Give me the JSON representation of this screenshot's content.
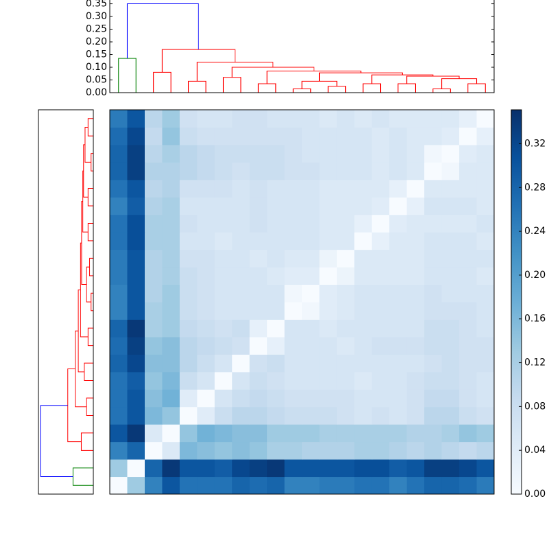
{
  "chart_data": {
    "type": "clustered-heatmap",
    "cmap": "Blues",
    "matrix": [
      [
        0,
        0.13,
        0.24,
        0.3,
        0.26,
        0.26,
        0.26,
        0.28,
        0.27,
        0.28,
        0.24,
        0.24,
        0.25,
        0.25,
        0.26,
        0.26,
        0.24,
        0.26,
        0.28,
        0.28,
        0.27,
        0.25
      ],
      [
        0.13,
        0,
        0.28,
        0.34,
        0.3,
        0.3,
        0.29,
        0.32,
        0.33,
        0.34,
        0.3,
        0.3,
        0.3,
        0.3,
        0.31,
        0.31,
        0.29,
        0.3,
        0.33,
        0.33,
        0.32,
        0.3
      ],
      [
        0.24,
        0.28,
        0,
        0.05,
        0.16,
        0.15,
        0.14,
        0.15,
        0.14,
        0.12,
        0.12,
        0.11,
        0.11,
        0.11,
        0.12,
        0.12,
        0.11,
        0.1,
        0.11,
        0.1,
        0.09,
        0.1
      ],
      [
        0.3,
        0.34,
        0.05,
        0,
        0.14,
        0.17,
        0.16,
        0.15,
        0.15,
        0.13,
        0.13,
        0.13,
        0.12,
        0.12,
        0.12,
        0.12,
        0.12,
        0.11,
        0.11,
        0.12,
        0.14,
        0.13
      ],
      [
        0.26,
        0.3,
        0.16,
        0.14,
        0,
        0.04,
        0.08,
        0.1,
        0.1,
        0.09,
        0.08,
        0.08,
        0.08,
        0.07,
        0.06,
        0.07,
        0.06,
        0.07,
        0.1,
        0.1,
        0.08,
        0.07
      ],
      [
        0.26,
        0.3,
        0.15,
        0.17,
        0.04,
        0,
        0.06,
        0.08,
        0.09,
        0.08,
        0.07,
        0.07,
        0.07,
        0.07,
        0.06,
        0.06,
        0.06,
        0.07,
        0.09,
        0.09,
        0.07,
        0.06
      ],
      [
        0.26,
        0.29,
        0.14,
        0.16,
        0.08,
        0.06,
        0,
        0.06,
        0.08,
        0.07,
        0.06,
        0.06,
        0.06,
        0.06,
        0.05,
        0.06,
        0.06,
        0.07,
        0.08,
        0.08,
        0.07,
        0.06
      ],
      [
        0.28,
        0.32,
        0.15,
        0.15,
        0.1,
        0.08,
        0.06,
        0,
        0.07,
        0.08,
        0.06,
        0.06,
        0.06,
        0.06,
        0.06,
        0.06,
        0.06,
        0.06,
        0.07,
        0.08,
        0.07,
        0.07
      ],
      [
        0.27,
        0.33,
        0.14,
        0.15,
        0.1,
        0.09,
        0.08,
        0.07,
        0,
        0.03,
        0.06,
        0.06,
        0.06,
        0.05,
        0.06,
        0.07,
        0.07,
        0.07,
        0.08,
        0.08,
        0.07,
        0.07
      ],
      [
        0.28,
        0.34,
        0.12,
        0.13,
        0.09,
        0.08,
        0.07,
        0.08,
        0.03,
        0,
        0.06,
        0.06,
        0.05,
        0.06,
        0.06,
        0.06,
        0.06,
        0.06,
        0.08,
        0.08,
        0.07,
        0.06
      ],
      [
        0.24,
        0.3,
        0.12,
        0.13,
        0.08,
        0.07,
        0.06,
        0.06,
        0.06,
        0.06,
        0,
        0.01,
        0.04,
        0.05,
        0.06,
        0.06,
        0.06,
        0.06,
        0.07,
        0.07,
        0.07,
        0.06
      ],
      [
        0.24,
        0.3,
        0.11,
        0.13,
        0.08,
        0.07,
        0.06,
        0.06,
        0.06,
        0.06,
        0.01,
        0,
        0.04,
        0.05,
        0.06,
        0.06,
        0.06,
        0.06,
        0.07,
        0.06,
        0.06,
        0.06
      ],
      [
        0.25,
        0.3,
        0.11,
        0.12,
        0.08,
        0.07,
        0.06,
        0.06,
        0.06,
        0.05,
        0.04,
        0.04,
        0,
        0.02,
        0.05,
        0.05,
        0.05,
        0.05,
        0.06,
        0.06,
        0.06,
        0.05
      ],
      [
        0.25,
        0.3,
        0.11,
        0.12,
        0.07,
        0.07,
        0.06,
        0.06,
        0.05,
        0.06,
        0.05,
        0.05,
        0.02,
        0,
        0.05,
        0.05,
        0.05,
        0.05,
        0.06,
        0.06,
        0.06,
        0.06
      ],
      [
        0.26,
        0.31,
        0.12,
        0.12,
        0.06,
        0.06,
        0.05,
        0.06,
        0.06,
        0.06,
        0.06,
        0.06,
        0.05,
        0.05,
        0,
        0.03,
        0.05,
        0.05,
        0.06,
        0.06,
        0.06,
        0.05
      ],
      [
        0.26,
        0.31,
        0.12,
        0.12,
        0.07,
        0.06,
        0.06,
        0.06,
        0.07,
        0.06,
        0.06,
        0.06,
        0.05,
        0.05,
        0.03,
        0,
        0.04,
        0.05,
        0.05,
        0.05,
        0.05,
        0.06
      ],
      [
        0.24,
        0.29,
        0.11,
        0.12,
        0.06,
        0.06,
        0.06,
        0.06,
        0.07,
        0.06,
        0.06,
        0.06,
        0.05,
        0.05,
        0.05,
        0.04,
        0,
        0.03,
        0.06,
        0.06,
        0.06,
        0.05
      ],
      [
        0.26,
        0.3,
        0.1,
        0.11,
        0.07,
        0.07,
        0.07,
        0.06,
        0.07,
        0.06,
        0.06,
        0.06,
        0.05,
        0.05,
        0.05,
        0.05,
        0.03,
        0,
        0.05,
        0.05,
        0.05,
        0.05
      ],
      [
        0.28,
        0.33,
        0.11,
        0.11,
        0.1,
        0.09,
        0.08,
        0.07,
        0.08,
        0.08,
        0.07,
        0.07,
        0.06,
        0.06,
        0.06,
        0.05,
        0.06,
        0.05,
        0,
        0.01,
        0.05,
        0.05
      ],
      [
        0.28,
        0.33,
        0.1,
        0.12,
        0.1,
        0.09,
        0.08,
        0.08,
        0.08,
        0.08,
        0.07,
        0.06,
        0.06,
        0.06,
        0.06,
        0.05,
        0.06,
        0.05,
        0.01,
        0,
        0.04,
        0.05
      ],
      [
        0.27,
        0.32,
        0.09,
        0.14,
        0.08,
        0.07,
        0.07,
        0.07,
        0.07,
        0.07,
        0.07,
        0.06,
        0.06,
        0.06,
        0.06,
        0.05,
        0.06,
        0.05,
        0.05,
        0.04,
        0,
        0.03
      ],
      [
        0.25,
        0.3,
        0.1,
        0.13,
        0.07,
        0.06,
        0.06,
        0.07,
        0.07,
        0.06,
        0.06,
        0.06,
        0.05,
        0.06,
        0.05,
        0.06,
        0.05,
        0.05,
        0.05,
        0.05,
        0.03,
        0
      ]
    ],
    "clim": [
      0,
      0.351
    ],
    "colorbar_ticks": [
      {
        "value": 0,
        "label": "0.00"
      },
      {
        "value": 0.04,
        "label": "0.04"
      },
      {
        "value": 0.08,
        "label": "0.08"
      },
      {
        "value": 0.12,
        "label": "0.12"
      },
      {
        "value": 0.16,
        "label": "0.16"
      },
      {
        "value": 0.2,
        "label": "0.20"
      },
      {
        "value": 0.24,
        "label": "0.24"
      },
      {
        "value": 0.28,
        "label": "0.28"
      },
      {
        "value": 0.32,
        "label": "0.32"
      }
    ],
    "dendrogram": {
      "ylim": [
        0,
        0.365
      ],
      "yticks": [
        {
          "value": 0,
          "label": "0.00"
        },
        {
          "value": 0.05,
          "label": "0.05"
        },
        {
          "value": 0.1,
          "label": "0.10"
        },
        {
          "value": 0.15,
          "label": "0.15"
        },
        {
          "value": 0.2,
          "label": "0.20"
        },
        {
          "value": 0.25,
          "label": "0.25"
        },
        {
          "value": 0.3,
          "label": "0.30"
        },
        {
          "value": 0.35,
          "label": "0.35"
        }
      ],
      "links": [
        {
          "left": 0.5,
          "right": 1.5,
          "left_base": 0,
          "right_base": 0,
          "height": 0.135,
          "color": "#008000"
        },
        {
          "left": 2.5,
          "right": 3.5,
          "left_base": 0,
          "right_base": 0,
          "height": 0.08,
          "color": "#ff0000"
        },
        {
          "left": 4.5,
          "right": 5.5,
          "left_base": 0,
          "right_base": 0,
          "height": 0.045,
          "color": "#ff0000"
        },
        {
          "left": 6.5,
          "right": 7.5,
          "left_base": 0,
          "right_base": 0,
          "height": 0.06,
          "color": "#ff0000"
        },
        {
          "left": 8.5,
          "right": 9.5,
          "left_base": 0,
          "right_base": 0,
          "height": 0.035,
          "color": "#ff0000"
        },
        {
          "left": 10.5,
          "right": 11.5,
          "left_base": 0,
          "right_base": 0,
          "height": 0.015,
          "color": "#ff0000"
        },
        {
          "left": 12.5,
          "right": 13.5,
          "left_base": 0,
          "right_base": 0,
          "height": 0.025,
          "color": "#ff0000"
        },
        {
          "left": 11,
          "right": 13,
          "left_base": 0.015,
          "right_base": 0.025,
          "height": 0.045,
          "color": "#ff0000"
        },
        {
          "left": 14.5,
          "right": 15.5,
          "left_base": 0,
          "right_base": 0,
          "height": 0.035,
          "color": "#ff0000"
        },
        {
          "left": 16.5,
          "right": 17.5,
          "left_base": 0,
          "right_base": 0,
          "height": 0.035,
          "color": "#ff0000"
        },
        {
          "left": 18.5,
          "right": 19.5,
          "left_base": 0,
          "right_base": 0,
          "height": 0.015,
          "color": "#ff0000"
        },
        {
          "left": 20.5,
          "right": 21.5,
          "left_base": 0,
          "right_base": 0,
          "height": 0.035,
          "color": "#ff0000"
        },
        {
          "left": 19,
          "right": 21,
          "left_base": 0.015,
          "right_base": 0.035,
          "height": 0.055,
          "color": "#ff0000"
        },
        {
          "left": 17,
          "right": 20,
          "left_base": 0.035,
          "right_base": 0.055,
          "height": 0.065,
          "color": "#ff0000"
        },
        {
          "left": 15,
          "right": 18.5,
          "left_base": 0.035,
          "right_base": 0.065,
          "height": 0.07,
          "color": "#ff0000"
        },
        {
          "left": 12,
          "right": 16.75,
          "left_base": 0.045,
          "right_base": 0.07,
          "height": 0.078,
          "color": "#ff0000"
        },
        {
          "left": 9,
          "right": 14.375,
          "left_base": 0.035,
          "right_base": 0.078,
          "height": 0.085,
          "color": "#ff0000"
        },
        {
          "left": 7,
          "right": 11.69,
          "left_base": 0.06,
          "right_base": 0.085,
          "height": 0.1,
          "color": "#ff0000"
        },
        {
          "left": 5,
          "right": 9.34,
          "left_base": 0.045,
          "right_base": 0.1,
          "height": 0.12,
          "color": "#ff0000"
        },
        {
          "left": 3,
          "right": 7.17,
          "left_base": 0.08,
          "right_base": 0.12,
          "height": 0.17,
          "color": "#ff0000"
        },
        {
          "left": 1,
          "right": 5.08,
          "left_base": 0.135,
          "right_base": 0.17,
          "height": 0.35,
          "color": "#0000ff"
        }
      ]
    }
  }
}
